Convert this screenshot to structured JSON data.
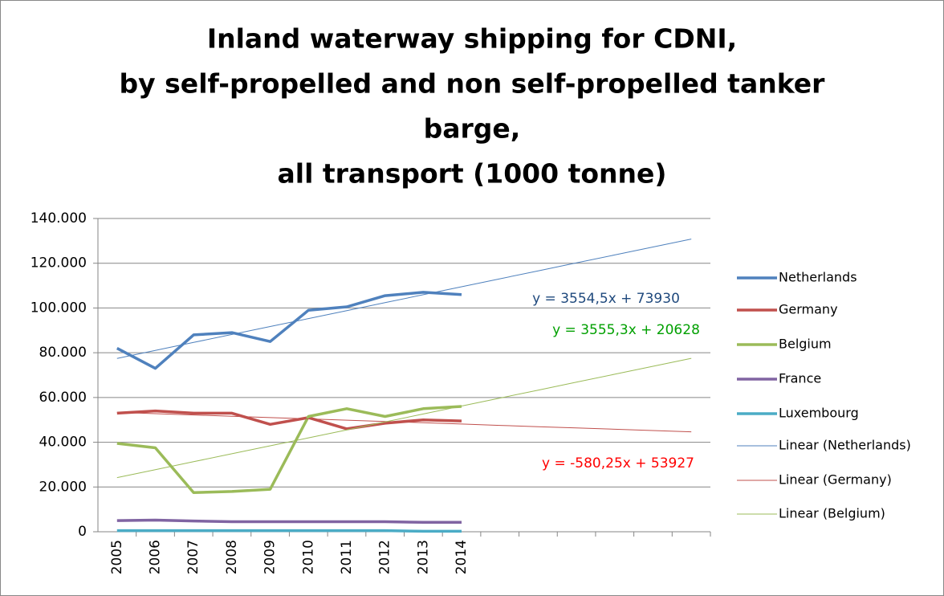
{
  "chart_data": {
    "type": "line",
    "title": [
      "Inland waterway shipping for CDNI,",
      "by self-propelled and non self-propelled tanker",
      "barge,",
      "all transport (1000 tonne)"
    ],
    "categories": [
      "2005",
      "2006",
      "2007",
      "2008",
      "2009",
      "2010",
      "2011",
      "2012",
      "2013",
      "2014",
      null,
      null,
      null,
      null,
      null,
      null
    ],
    "ylim": [
      0,
      140000
    ],
    "yticks": [
      0,
      {
        "value": 20000,
        "label": "20.000"
      },
      {
        "value": 40000,
        "label": "40.000"
      },
      {
        "value": 60000,
        "label": "60.000"
      },
      {
        "value": 80000,
        "label": "80.000"
      },
      {
        "value": 100000,
        "label": "100.000"
      },
      {
        "value": 120000,
        "label": "120.000"
      },
      {
        "value": 140000,
        "label": "140.000"
      }
    ],
    "grid": true,
    "legend": "right",
    "series": [
      {
        "name": "Netherlands",
        "color": "#4f81bd",
        "values": [
          82000,
          73000,
          88000,
          89000,
          85000,
          99000,
          100500,
          105500,
          107000,
          106000,
          null,
          null,
          null,
          null,
          null,
          null
        ]
      },
      {
        "name": "Germany",
        "color": "#c0504d",
        "values": [
          53000,
          54000,
          53000,
          53000,
          48000,
          51000,
          46000,
          48500,
          50000,
          49500,
          null,
          null,
          null,
          null,
          null,
          null
        ]
      },
      {
        "name": "Belgium",
        "color": "#9bbb59",
        "values": [
          39500,
          37500,
          17500,
          18000,
          19000,
          51500,
          55000,
          51500,
          55000,
          56000,
          null,
          null,
          null,
          null,
          null,
          null
        ]
      },
      {
        "name": "France",
        "color": "#8064a2",
        "values": [
          5000,
          5200,
          4800,
          4500,
          4500,
          4500,
          4500,
          4500,
          4200,
          4200,
          null,
          null,
          null,
          null,
          null,
          null
        ]
      },
      {
        "name": "Luxembourg",
        "color": "#4bacc6",
        "values": [
          500,
          500,
          500,
          500,
          500,
          500,
          500,
          500,
          200,
          200,
          null,
          null,
          null,
          null,
          null,
          null
        ]
      },
      {
        "name": "Linear (Netherlands)",
        "color": "#4f81bd",
        "trendline": true,
        "values": [
          77484.5,
          81039,
          84593.5,
          88148,
          91702.5,
          95257,
          98811.5,
          102366,
          105920.5,
          109475,
          113029.5,
          116584,
          120138.5,
          123693,
          127247.5,
          130802
        ]
      },
      {
        "name": "Linear (Germany)",
        "color": "#c0504d",
        "trendline": true,
        "values": [
          53346.75,
          52766.5,
          52186.25,
          51606,
          51025.75,
          50445.5,
          49865.25,
          49285,
          48704.75,
          48124.5,
          47544.25,
          46964,
          46383.75,
          45803.5,
          45223.25,
          44643
        ]
      },
      {
        "name": "Linear (Belgium)",
        "color": "#9bbb59",
        "trendline": true,
        "values": [
          24183.3,
          27738.6,
          31293.9,
          34849.2,
          38404.5,
          41959.8,
          45515.1,
          49070.4,
          52625.7,
          56181,
          59736.3,
          63291.6,
          66846.9,
          70402.2,
          73957.5,
          77512.8
        ]
      }
    ],
    "annotations": [
      {
        "text": "y = 3554,5x + 73930",
        "color": "#1f497d"
      },
      {
        "text": "y = 3555,3x + 20628",
        "color": "#00a000"
      },
      {
        "text": "y = -580,25x + 53927",
        "color": "#ff0000"
      }
    ]
  }
}
